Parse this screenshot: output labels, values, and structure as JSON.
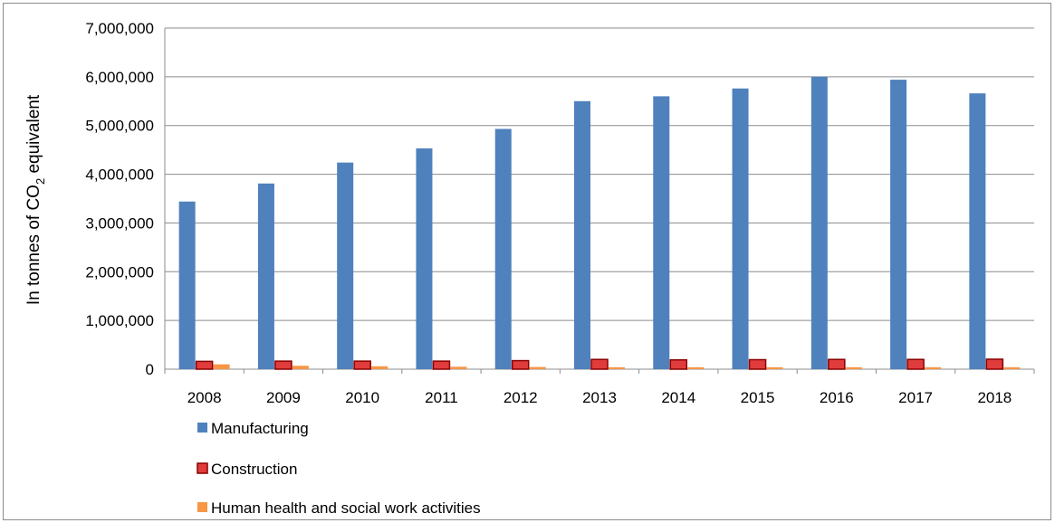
{
  "chart_data": {
    "type": "bar",
    "categories": [
      "2008",
      "2009",
      "2010",
      "2011",
      "2012",
      "2013",
      "2014",
      "2015",
      "2016",
      "2017",
      "2018"
    ],
    "series": [
      {
        "name": "Manufacturing",
        "color": "#4f81bd",
        "values": [
          3440000,
          3810000,
          4240000,
          4530000,
          4930000,
          5500000,
          5600000,
          5760000,
          6000000,
          5940000,
          5660000
        ]
      },
      {
        "name": "Construction",
        "color": "#e03c3c",
        "stroke": "#8b0000",
        "values": [
          160000,
          165000,
          165000,
          165000,
          175000,
          200000,
          190000,
          195000,
          200000,
          200000,
          205000
        ]
      },
      {
        "name": "Human health and social work activities",
        "color": "#f79646",
        "values": [
          100000,
          70000,
          60000,
          50000,
          45000,
          40000,
          40000,
          40000,
          40000,
          40000,
          40000
        ]
      }
    ],
    "ylabel_parts": [
      "In tonnes of CO",
      "2",
      " equivalent"
    ],
    "ylim": [
      0,
      7000000
    ],
    "yticks": [
      "0",
      "1,000,000",
      "2,000,000",
      "3,000,000",
      "4,000,000",
      "5,000,000",
      "6,000,000",
      "7,000,000"
    ],
    "ytick_values": [
      0,
      1000000,
      2000000,
      3000000,
      4000000,
      5000000,
      6000000,
      7000000
    ],
    "grid": true,
    "legend_position": "bottom-left"
  }
}
